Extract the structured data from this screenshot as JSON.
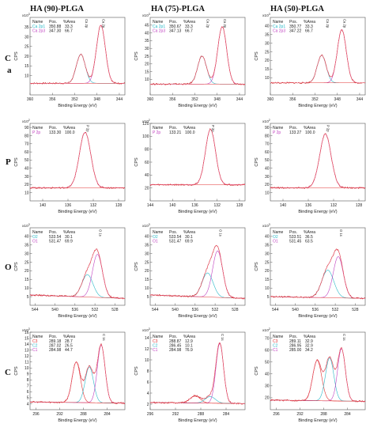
{
  "columns": [
    "HA (90)-PLGA",
    "HA (75)-PLGA",
    "HA (50)-PLGA"
  ],
  "rows": [
    {
      "label_lines": [
        "C",
        "a"
      ]
    },
    {
      "label_lines": [
        "P"
      ]
    },
    {
      "label_lines": [
        "O"
      ]
    },
    {
      "label_lines": [
        "C"
      ]
    }
  ],
  "colors": {
    "frame": "#555555",
    "measured": "#cc2a2a",
    "fit": "#ff80a0",
    "background": "#e03030",
    "component_cyan": "#29b8c8",
    "component_magenta": "#c040c0"
  },
  "chart_data": [
    {
      "type": "line",
      "row": 0,
      "col": 0,
      "ylabel": "CPS",
      "xlabel": "Binding Energy (eV)",
      "exponent": "x10",
      "exp_power": "3",
      "xlim": [
        360,
        343
      ],
      "xticks": [
        360,
        356,
        352,
        348,
        344
      ],
      "ylim": [
        0,
        40
      ],
      "yticks": [
        10,
        15,
        20,
        25,
        30,
        35
      ],
      "peak_labels": [
        "Ca 2p",
        "Ca 2p"
      ],
      "table": {
        "headers": [
          "Name",
          "Pos.",
          "%Area"
        ],
        "rows": [
          {
            "name": "Ca 2p1",
            "pos": "350.88",
            "area": "33.3",
            "color": "#29b8c8"
          },
          {
            "name": "Ca 2p3",
            "pos": "347.30",
            "area": "66.7",
            "color": "#c040c0"
          }
        ]
      },
      "baseline": [
        6,
        6
      ],
      "peaks": [
        {
          "center": 350.9,
          "height": 15,
          "width": 0.8
        },
        {
          "center": 347.3,
          "height": 30,
          "width": 0.8
        }
      ]
    },
    {
      "type": "line",
      "row": 0,
      "col": 1,
      "ylabel": "CPS",
      "xlabel": "Binding Energy (eV)",
      "exponent": "x10",
      "exp_power": "3",
      "xlim": [
        360,
        343
      ],
      "xticks": [
        360,
        356,
        352,
        348,
        344
      ],
      "ylim": [
        0,
        50
      ],
      "yticks": [
        10,
        15,
        20,
        25,
        30,
        35,
        40,
        45
      ],
      "peak_labels": [
        "Ca 2p",
        "Ca 2p"
      ],
      "table": {
        "headers": [
          "Name",
          "Pos.",
          "%Area"
        ],
        "rows": [
          {
            "name": "Ca 2p1",
            "pos": "350.67",
            "area": "33.3",
            "color": "#29b8c8"
          },
          {
            "name": "Ca 2p3",
            "pos": "347.13",
            "area": "66.7",
            "color": "#c040c0"
          }
        ]
      },
      "baseline": [
        7,
        7
      ],
      "peaks": [
        {
          "center": 350.7,
          "height": 18,
          "width": 0.8
        },
        {
          "center": 347.1,
          "height": 37,
          "width": 0.8
        }
      ]
    },
    {
      "type": "line",
      "row": 0,
      "col": 2,
      "ylabel": "CPS",
      "xlabel": "Binding Energy (eV)",
      "exponent": "x10",
      "exp_power": "3",
      "xlim": [
        360,
        343
      ],
      "xticks": [
        360,
        356,
        352,
        348,
        344
      ],
      "ylim": [
        0,
        45
      ],
      "yticks": [
        10,
        15,
        20,
        25,
        30,
        35,
        40
      ],
      "peak_labels": [
        "Ca 2p",
        "Ca 2p"
      ],
      "table": {
        "headers": [
          "Name",
          "Pos.",
          "%Area"
        ],
        "rows": [
          {
            "name": "Ca 2p1",
            "pos": "350.77",
            "area": "33.3",
            "color": "#29b8c8"
          },
          {
            "name": "Ca 2p3",
            "pos": "347.22",
            "area": "66.7",
            "color": "#c040c0"
          }
        ]
      },
      "baseline": [
        7,
        7
      ],
      "peaks": [
        {
          "center": 350.8,
          "height": 16,
          "width": 0.8
        },
        {
          "center": 347.2,
          "height": 31,
          "width": 0.8
        }
      ]
    },
    {
      "type": "line",
      "row": 1,
      "col": 0,
      "ylabel": "CPS",
      "xlabel": "Binding Energy (eV)",
      "exponent": "x10",
      "exp_power": "2",
      "xlim": [
        142,
        127
      ],
      "xticks": [
        140,
        136,
        132,
        128
      ],
      "ylim": [
        0,
        95
      ],
      "yticks": [
        10,
        20,
        30,
        40,
        50,
        60,
        70,
        80,
        90
      ],
      "peak_labels": [
        "P 2p"
      ],
      "table": {
        "headers": [
          "Name",
          "Pos.",
          "%Area"
        ],
        "rows": [
          {
            "name": "P 2p",
            "pos": "133.30",
            "area": "100.0",
            "color": "#c040c0"
          }
        ]
      },
      "baseline": [
        16,
        16
      ],
      "peaks": [
        {
          "center": 133.3,
          "height": 68,
          "width": 0.9
        }
      ]
    },
    {
      "type": "line",
      "row": 1,
      "col": 1,
      "ylabel": "CPS",
      "xlabel": "Binding Energy (eV)",
      "exponent": "x10",
      "exp_power": "2",
      "xlim": [
        144,
        127
      ],
      "xticks": [
        144,
        140,
        136,
        132,
        128
      ],
      "ylim": [
        0,
        120
      ],
      "yticks": [
        20,
        40,
        60,
        80,
        100,
        120
      ],
      "peak_labels": [
        "P 2p"
      ],
      "table": {
        "headers": [
          "Name",
          "Pos.",
          "%Area"
        ],
        "rows": [
          {
            "name": "P 2p",
            "pos": "133.21",
            "area": "100.0",
            "color": "#c040c0"
          }
        ]
      },
      "baseline": [
        25,
        25
      ],
      "peaks": [
        {
          "center": 133.2,
          "height": 86,
          "width": 0.9
        }
      ]
    },
    {
      "type": "line",
      "row": 1,
      "col": 2,
      "ylabel": "CPS",
      "xlabel": "Binding Energy (eV)",
      "exponent": "x10",
      "exp_power": "2",
      "xlim": [
        142,
        127
      ],
      "xticks": [
        140,
        136,
        132,
        128
      ],
      "ylim": [
        0,
        95
      ],
      "yticks": [
        10,
        20,
        30,
        40,
        50,
        60,
        70,
        80,
        90
      ],
      "peak_labels": [
        "P 2p"
      ],
      "table": {
        "headers": [
          "Name",
          "Pos.",
          "%Area"
        ],
        "rows": [
          {
            "name": "P 2p",
            "pos": "133.27",
            "area": "100.0",
            "color": "#c040c0"
          }
        ]
      },
      "baseline": [
        16,
        16
      ],
      "peaks": [
        {
          "center": 133.3,
          "height": 66,
          "width": 0.9
        }
      ]
    },
    {
      "type": "line",
      "row": 2,
      "col": 0,
      "ylabel": "CPS",
      "xlabel": "Binding Energy (eV)",
      "exponent": "x10",
      "exp_power": "3",
      "xlim": [
        545,
        526
      ],
      "xticks": [
        544,
        540,
        536,
        532,
        528
      ],
      "ylim": [
        0,
        45
      ],
      "yticks": [
        5,
        10,
        15,
        20,
        25,
        30,
        35,
        40
      ],
      "peak_labels": [
        "O 1s"
      ],
      "table": {
        "headers": [
          "Name",
          "Pos.",
          "%Area"
        ],
        "rows": [
          {
            "name": "O2",
            "pos": "533.54",
            "area": "30.1",
            "color": "#29b8c8"
          },
          {
            "name": "O1",
            "pos": "531.47",
            "area": "69.9",
            "color": "#c040c0"
          }
        ]
      },
      "baseline": [
        6,
        4
      ],
      "peaks": [
        {
          "center": 533.5,
          "height": 13,
          "width": 1.1
        },
        {
          "center": 531.5,
          "height": 25,
          "width": 1.0
        }
      ]
    },
    {
      "type": "line",
      "row": 2,
      "col": 1,
      "ylabel": "CPS",
      "xlabel": "Binding Energy (eV)",
      "exponent": "x10",
      "exp_power": "3",
      "xlim": [
        545,
        526
      ],
      "xticks": [
        544,
        540,
        536,
        532,
        528
      ],
      "ylim": [
        0,
        45
      ],
      "yticks": [
        5,
        10,
        15,
        20,
        25,
        30,
        35,
        40
      ],
      "peak_labels": [
        "O 1s"
      ],
      "table": {
        "headers": [
          "Name",
          "Pos.",
          "%Area"
        ],
        "rows": [
          {
            "name": "O2",
            "pos": "533.54",
            "area": "30.1",
            "color": "#29b8c8"
          },
          {
            "name": "O1",
            "pos": "531.47",
            "area": "69.9",
            "color": "#c040c0"
          }
        ]
      },
      "baseline": [
        6,
        4
      ],
      "peaks": [
        {
          "center": 533.5,
          "height": 14,
          "width": 1.1
        },
        {
          "center": 531.5,
          "height": 27,
          "width": 1.0
        }
      ]
    },
    {
      "type": "line",
      "row": 2,
      "col": 2,
      "ylabel": "CPS",
      "xlabel": "Binding Energy (eV)",
      "exponent": "x10",
      "exp_power": "3",
      "xlim": [
        545,
        526
      ],
      "xticks": [
        544,
        540,
        536,
        532,
        528
      ],
      "ylim": [
        0,
        45
      ],
      "yticks": [
        5,
        10,
        15,
        20,
        25,
        30,
        35,
        40
      ],
      "peak_labels": [
        "O 1s"
      ],
      "table": {
        "headers": [
          "Name",
          "Pos.",
          "%Area"
        ],
        "rows": [
          {
            "name": "O2",
            "pos": "533.51",
            "area": "36.5",
            "color": "#29b8c8"
          },
          {
            "name": "O1",
            "pos": "531.45",
            "area": "63.5",
            "color": "#c040c0"
          }
        ]
      },
      "baseline": [
        5,
        4
      ],
      "peaks": [
        {
          "center": 533.5,
          "height": 16,
          "width": 1.2
        },
        {
          "center": 531.4,
          "height": 24,
          "width": 1.0
        }
      ]
    },
    {
      "type": "line",
      "row": 3,
      "col": 0,
      "ylabel": "CPS",
      "xlabel": "Binding Energy (eV)",
      "exponent": "x10",
      "exp_power": "3",
      "xlim": [
        297,
        281
      ],
      "xticks": [
        296,
        292,
        288,
        284
      ],
      "ylim": [
        3,
        16
      ],
      "yticks": [
        4,
        5,
        6,
        7,
        8,
        9,
        10,
        11,
        12,
        13,
        14,
        15,
        16
      ],
      "peak_labels": [
        "C 1s"
      ],
      "table": {
        "headers": [
          "Name",
          "Pos.",
          "%Area"
        ],
        "rows": [
          {
            "name": "C3",
            "pos": "289.18",
            "area": "28.7",
            "color": "#e03030"
          },
          {
            "name": "C2",
            "pos": "287.02",
            "area": "26.5",
            "color": "#29b8c8"
          },
          {
            "name": "C1",
            "pos": "284.98",
            "area": "44.7",
            "color": "#c040c0"
          }
        ]
      },
      "baseline": [
        4.3,
        4.1
      ],
      "peaks": [
        {
          "center": 289.2,
          "height": 6.8,
          "width": 0.7
        },
        {
          "center": 287.0,
          "height": 6.0,
          "width": 0.7
        },
        {
          "center": 285.0,
          "height": 9.7,
          "width": 0.65
        }
      ]
    },
    {
      "type": "line",
      "row": 3,
      "col": 1,
      "ylabel": "CPS",
      "xlabel": "Binding Energy (eV)",
      "exponent": "x10",
      "exp_power": "3",
      "xlim": [
        296,
        281
      ],
      "xticks": [
        296,
        292,
        288,
        284
      ],
      "ylim": [
        1,
        15
      ],
      "yticks": [
        2,
        4,
        6,
        8,
        10,
        12,
        14
      ],
      "peak_labels": [
        "C 1s"
      ],
      "table": {
        "headers": [
          "Name",
          "Pos.",
          "%Area"
        ],
        "rows": [
          {
            "name": "C3",
            "pos": "288.87",
            "area": "12.9",
            "color": "#e03030"
          },
          {
            "name": "C2",
            "pos": "286.45",
            "area": "10.1",
            "color": "#29b8c8"
          },
          {
            "name": "C1",
            "pos": "284.98",
            "area": "76.9",
            "color": "#c040c0"
          }
        ]
      },
      "baseline": [
        2.3,
        2.1
      ],
      "peaks": [
        {
          "center": 288.9,
          "height": 1.3,
          "width": 0.8
        },
        {
          "center": 286.5,
          "height": 1.2,
          "width": 0.8
        },
        {
          "center": 285.0,
          "height": 10.8,
          "width": 0.6
        }
      ]
    },
    {
      "type": "line",
      "row": 3,
      "col": 2,
      "ylabel": "CPS",
      "xlabel": "Binding Energy (eV)",
      "exponent": "x10",
      "exp_power": "2",
      "xlim": [
        297,
        281
      ],
      "xticks": [
        296,
        292,
        288,
        284
      ],
      "ylim": [
        10,
        75
      ],
      "yticks": [
        20,
        30,
        40,
        50,
        60,
        70
      ],
      "peak_labels": [
        "C 1s"
      ],
      "table": {
        "headers": [
          "Name",
          "Pos.",
          "%Area"
        ],
        "rows": [
          {
            "name": "C3",
            "pos": "289.11",
            "area": "32.9",
            "color": "#e03030"
          },
          {
            "name": "C2",
            "pos": "286.95",
            "area": "32.9",
            "color": "#29b8c8"
          },
          {
            "name": "C1",
            "pos": "285.00",
            "area": "34.2",
            "color": "#c040c0"
          }
        ]
      },
      "baseline": [
        18,
        17
      ],
      "peaks": [
        {
          "center": 289.1,
          "height": 34,
          "width": 0.75
        },
        {
          "center": 287.0,
          "height": 36,
          "width": 0.7
        },
        {
          "center": 285.0,
          "height": 44,
          "width": 0.65
        }
      ]
    }
  ]
}
